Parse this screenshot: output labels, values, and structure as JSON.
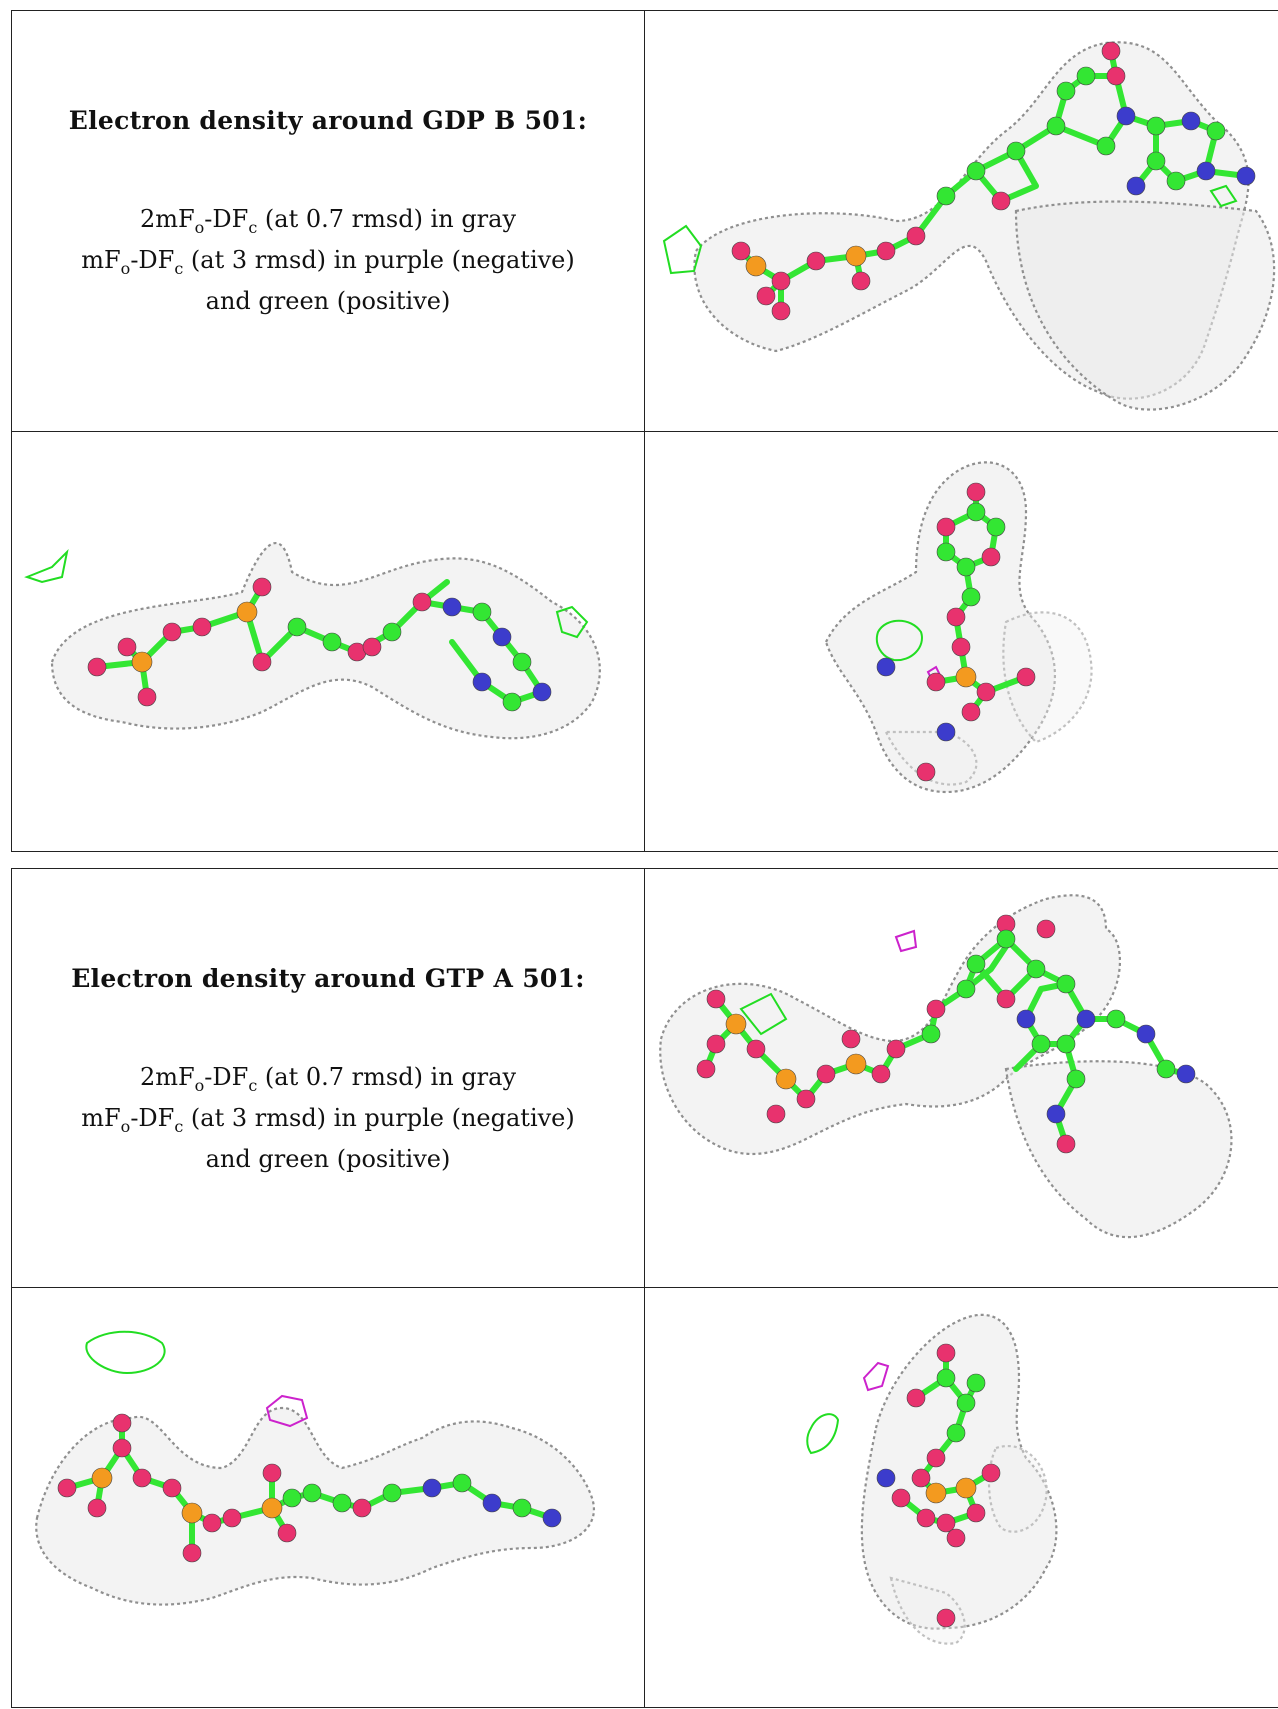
{
  "panels": [
    {
      "heading": "Electron density around GDP B 501:",
      "caption": {
        "line1_a": "2mF",
        "line1_sub1": "o",
        "line1_b": "-DF",
        "line1_sub2": "c",
        "line1_c": " (at 0.7 rmsd) in gray",
        "line2_a": "mF",
        "line2_sub1": "o",
        "line2_b": "-DF",
        "line2_sub2": "c",
        "line2_c": " (at 3 rmsd) in purple (negative)",
        "line3": "and green (positive)"
      }
    },
    {
      "heading": "Electron density around GTP A 501:",
      "caption": {
        "line1_a": "2mF",
        "line1_sub1": "o",
        "line1_b": "-DF",
        "line1_sub2": "c",
        "line1_c": " (at 0.7 rmsd) in gray",
        "line2_a": "mF",
        "line2_sub1": "o",
        "line2_b": "-DF",
        "line2_sub2": "c",
        "line2_c": " (at 3 rmsd) in purple (negative)",
        "line3": "and green (positive)"
      }
    }
  ],
  "colors": {
    "mesh": "#9a9a9a",
    "carbon": "#33e633",
    "oxygen": "#e8326e",
    "nitrogen": "#3c3ccc",
    "phosphorus": "#f39a1f",
    "positive_density": "#22dd22",
    "negative_density": "#cc22cc"
  }
}
